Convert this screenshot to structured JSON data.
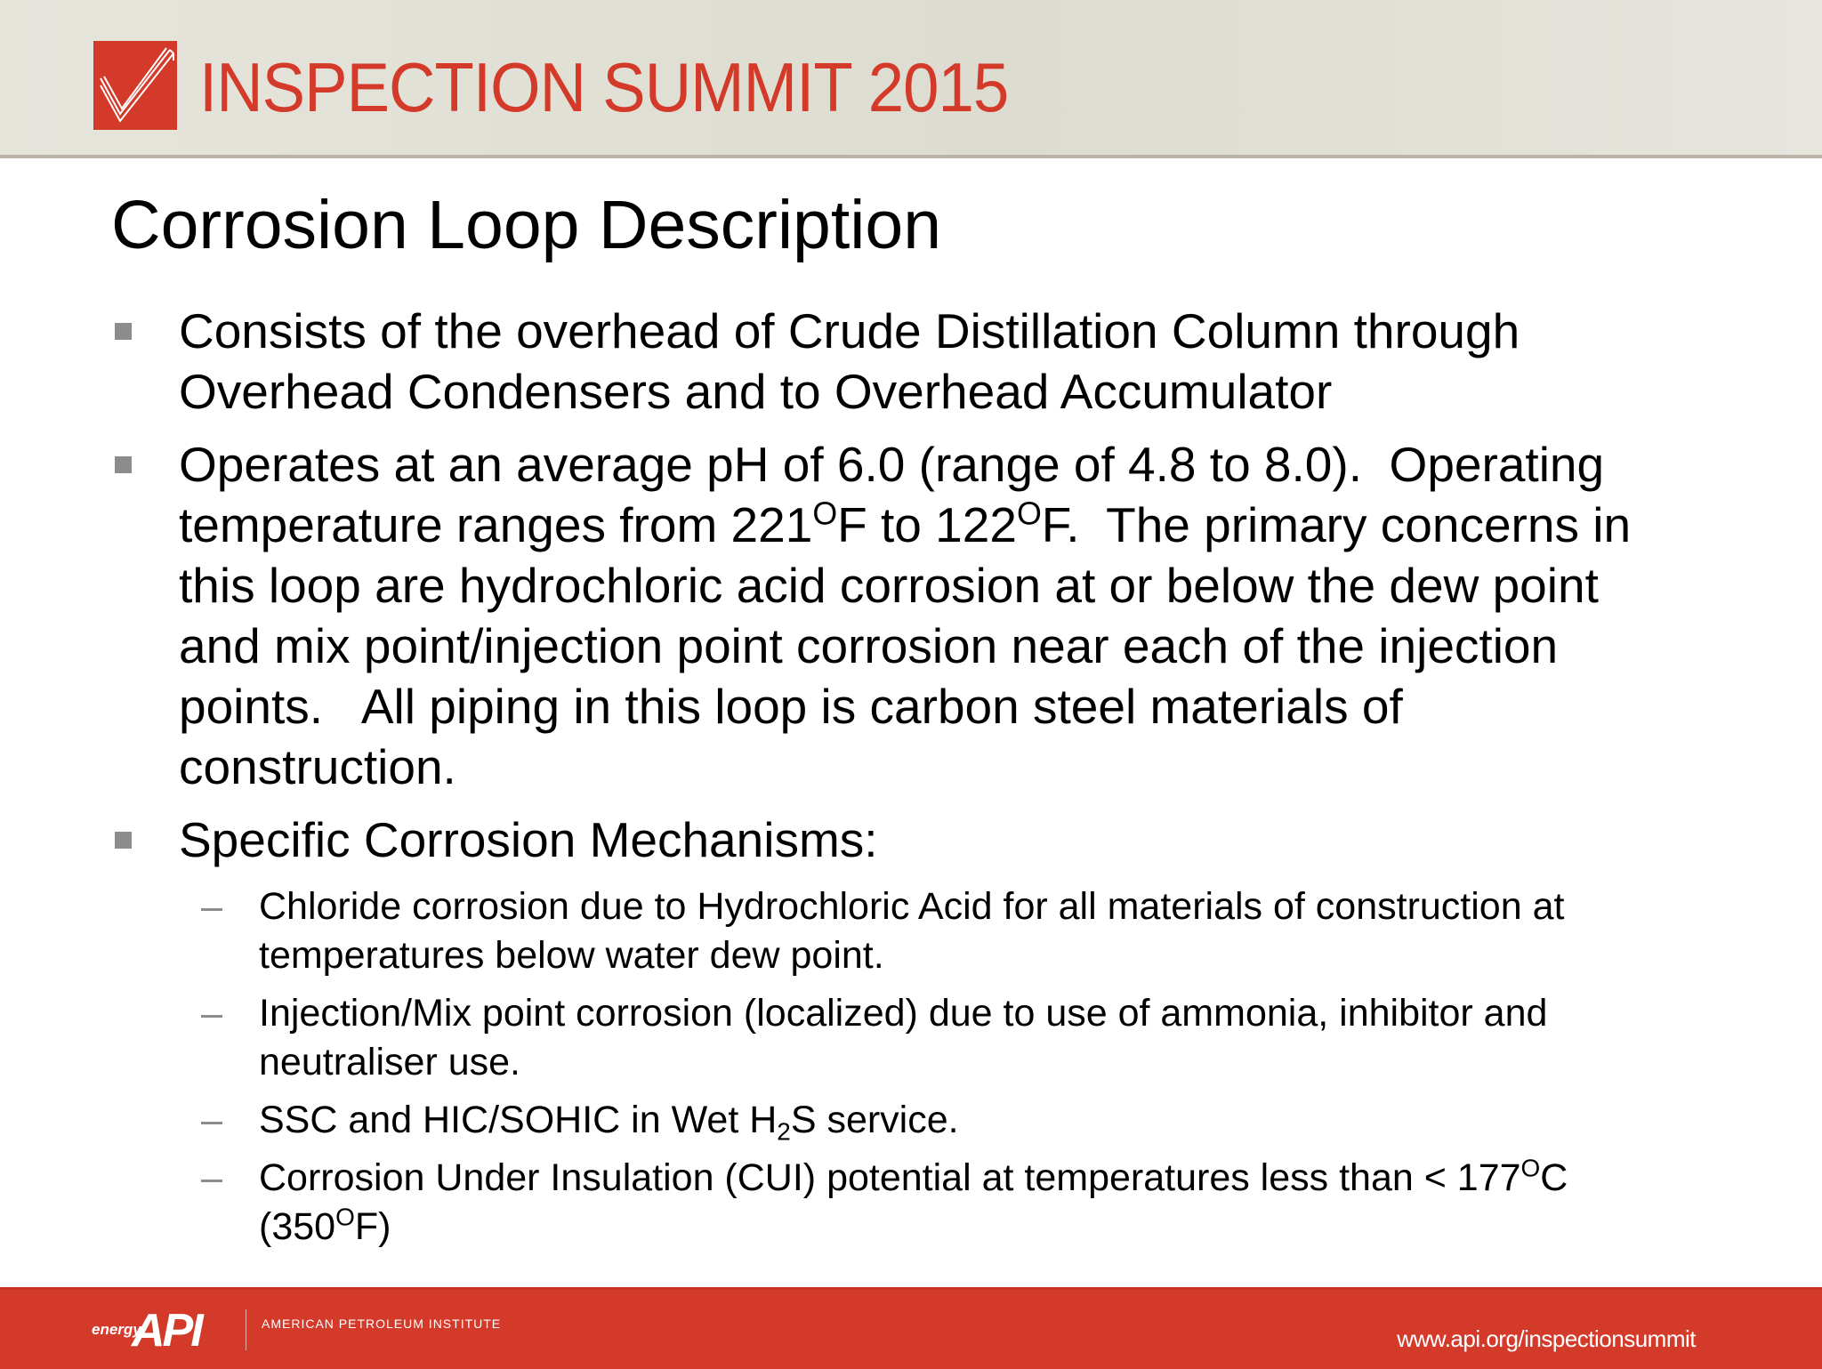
{
  "header": {
    "event_title": "INSPECTION SUMMIT 2015",
    "brand_color": "#d43a2a",
    "logo_icon": "checkmark-icon"
  },
  "slide": {
    "title": "Corrosion Loop Description",
    "bullets": [
      {
        "level": 1,
        "lines": [
          [
            [
              "Consists of the overhead of Crude Distillation Column through",
              ""
            ]
          ],
          [
            [
              "Overhead Condensers and to Overhead Accumulator",
              ""
            ]
          ]
        ]
      },
      {
        "level": 1,
        "lines": [
          [
            [
              "Operates at an average pH of 6.0 (range of 4.8 to 8.0).  Operating",
              ""
            ]
          ],
          [
            [
              "temperature ranges from 221",
              ""
            ],
            [
              "O",
              "sup"
            ],
            [
              "F to 122",
              ""
            ],
            [
              "O",
              "sup"
            ],
            [
              "F.  The primary concerns in",
              ""
            ]
          ],
          [
            [
              "this loop are hydrochloric acid corrosion at or below the dew point",
              ""
            ]
          ],
          [
            [
              "and mix point/injection point corrosion near each of the injection",
              ""
            ]
          ],
          [
            [
              "points.   All piping in this loop is carbon steel materials of",
              ""
            ]
          ],
          [
            [
              "construction.",
              ""
            ]
          ]
        ]
      },
      {
        "level": 1,
        "lines": [
          [
            [
              "Specific Corrosion Mechanisms:",
              ""
            ]
          ]
        ]
      },
      {
        "level": 2,
        "lines": [
          [
            [
              "Chloride corrosion due to Hydrochloric Acid for all materials of construction at",
              ""
            ]
          ],
          [
            [
              "temperatures below water dew point.",
              ""
            ]
          ]
        ]
      },
      {
        "level": 2,
        "lines": [
          [
            [
              "Injection/Mix point corrosion (localized) due to use of ammonia, inhibitor and",
              ""
            ]
          ],
          [
            [
              "neutraliser use.",
              ""
            ]
          ]
        ]
      },
      {
        "level": 2,
        "lines": [
          [
            [
              "SSC and HIC/SOHIC in Wet H",
              ""
            ],
            [
              "2",
              "sub"
            ],
            [
              "S service.",
              ""
            ]
          ]
        ]
      },
      {
        "level": 2,
        "lines": [
          [
            [
              "Corrosion Under Insulation (CUI) potential at temperatures less than < 177",
              ""
            ],
            [
              "O",
              "sup"
            ],
            [
              "C",
              ""
            ]
          ],
          [
            [
              "(350",
              ""
            ],
            [
              "O",
              "sup"
            ],
            [
              "F)",
              ""
            ]
          ]
        ]
      }
    ]
  },
  "footer": {
    "energy_label": "energy",
    "logo_text": "API",
    "org_name": "AMERICAN PETROLEUM INSTITUTE",
    "url": "www.api.org/inspectionsummit"
  }
}
